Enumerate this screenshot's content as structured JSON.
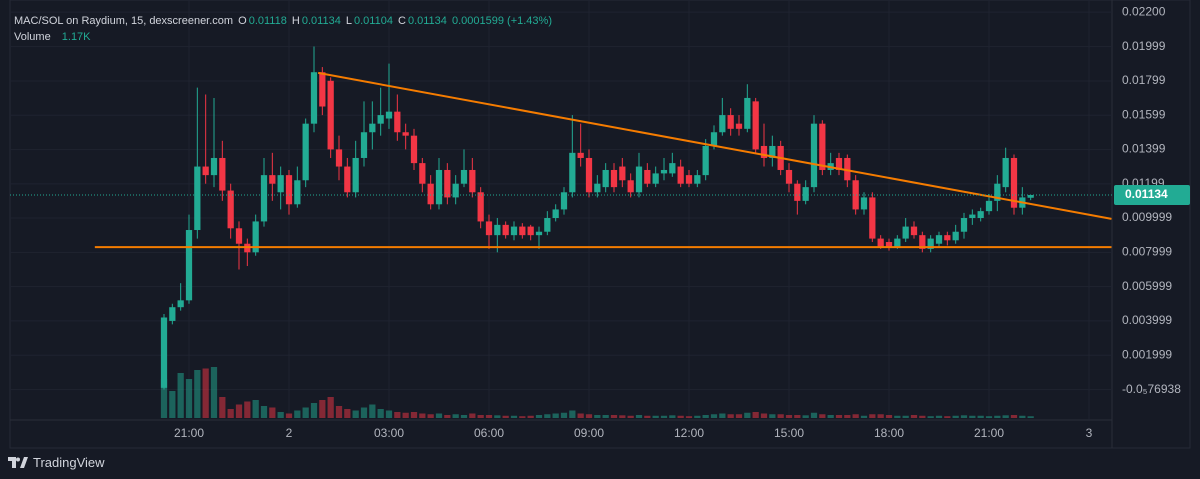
{
  "chart_data": {
    "type": "candlestick",
    "title": "MAC/SOL on Raydium, 15, dexscreener.com",
    "ohlc_labels": [
      "O",
      "H",
      "L",
      "C"
    ],
    "change": "0.0001599 (+1.43%)",
    "up_color": "#22ab94",
    "down_color": "#f23645",
    "open": [
      0.0001,
      0.004,
      0.0048,
      0.0052,
      0.0093,
      0.013,
      0.0125,
      0.0135,
      0.0116,
      0.0094,
      0.0085,
      0.008,
      0.0098,
      0.0125,
      0.0115,
      0.0125,
      0.0108,
      0.0122,
      0.0155,
      0.0185,
      0.018,
      0.014,
      0.013,
      0.0115,
      0.0135,
      0.015,
      0.0155,
      0.0158,
      0.0162,
      0.015,
      0.0148,
      0.0132,
      0.012,
      0.0108,
      0.0128,
      0.0112,
      0.012,
      0.0128,
      0.0115,
      0.0098,
      0.009,
      0.0096,
      0.009,
      0.0095,
      0.0095,
      0.009,
      0.0092,
      0.01,
      0.0105,
      0.0115,
      0.0138,
      0.0135,
      0.0115,
      0.0118,
      0.0128,
      0.013,
      0.0122,
      0.0115,
      0.0128,
      0.012,
      0.0126,
      0.0126,
      0.013,
      0.0125,
      0.012,
      0.0125,
      0.0142,
      0.015,
      0.016,
      0.0155,
      0.0152,
      0.0168,
      0.0142,
      0.0135,
      0.0142,
      0.0128,
      0.012,
      0.011,
      0.0118,
      0.0155,
      0.0128,
      0.0135,
      0.0135,
      0.0122,
      0.0105,
      0.0112,
      0.0088,
      0.0086,
      0.0083,
      0.0088,
      0.0095,
      0.009,
      0.0082,
      0.0085,
      0.009,
      0.0087,
      0.0092,
      0.01,
      0.01,
      0.0104,
      0.011,
      0.0118,
      0.0135,
      0.0106,
      0.01118
    ],
    "high": [
      0.0044,
      0.005,
      0.0062,
      0.0102,
      0.0176,
      0.0172,
      0.017,
      0.0145,
      0.012,
      0.0098,
      0.0088,
      0.0102,
      0.0135,
      0.0138,
      0.013,
      0.0128,
      0.013,
      0.0158,
      0.02,
      0.0188,
      0.0182,
      0.0148,
      0.0135,
      0.0145,
      0.0168,
      0.0168,
      0.0176,
      0.019,
      0.0172,
      0.0155,
      0.0152,
      0.0135,
      0.0125,
      0.0135,
      0.0132,
      0.0125,
      0.014,
      0.0135,
      0.0118,
      0.0102,
      0.01,
      0.0098,
      0.0098,
      0.0097,
      0.0096,
      0.0095,
      0.0104,
      0.0108,
      0.0118,
      0.016,
      0.0155,
      0.014,
      0.0125,
      0.0132,
      0.0132,
      0.0135,
      0.0126,
      0.0138,
      0.0132,
      0.013,
      0.0135,
      0.0138,
      0.0134,
      0.0128,
      0.0128,
      0.0146,
      0.0154,
      0.017,
      0.0164,
      0.016,
      0.0178,
      0.017,
      0.0155,
      0.0148,
      0.0145,
      0.0132,
      0.0122,
      0.0122,
      0.016,
      0.0157,
      0.0138,
      0.0138,
      0.0137,
      0.0125,
      0.0115,
      0.0115,
      0.009,
      0.0088,
      0.009,
      0.01,
      0.0098,
      0.0092,
      0.009,
      0.0092,
      0.0092,
      0.0096,
      0.0103,
      0.0105,
      0.0106,
      0.0114,
      0.0125,
      0.0141,
      0.0137,
      0.0118,
      0.01134
    ],
    "low": [
      0,
      0.0038,
      0.0046,
      0.005,
      0.0088,
      0.012,
      0.0118,
      0.011,
      0.0088,
      0.007,
      0.0072,
      0.0078,
      0.0095,
      0.011,
      0.0105,
      0.0102,
      0.0106,
      0.0118,
      0.015,
      0.016,
      0.0135,
      0.0122,
      0.0112,
      0.0112,
      0.013,
      0.014,
      0.0148,
      0.0152,
      0.0145,
      0.014,
      0.0128,
      0.0115,
      0.0105,
      0.0105,
      0.0108,
      0.0108,
      0.0118,
      0.0112,
      0.0094,
      0.0082,
      0.008,
      0.0088,
      0.0087,
      0.0088,
      0.0087,
      0.0082,
      0.009,
      0.0098,
      0.0102,
      0.0112,
      0.013,
      0.0112,
      0.0112,
      0.0115,
      0.0115,
      0.0118,
      0.0112,
      0.0112,
      0.0118,
      0.0118,
      0.0122,
      0.0124,
      0.0118,
      0.0118,
      0.0118,
      0.0122,
      0.014,
      0.0148,
      0.0148,
      0.0148,
      0.015,
      0.0138,
      0.013,
      0.013,
      0.0125,
      0.0115,
      0.0102,
      0.0108,
      0.0115,
      0.0125,
      0.0125,
      0.0125,
      0.0118,
      0.0102,
      0.0102,
      0.0086,
      0.0082,
      0.0081,
      0.0082,
      0.0086,
      0.0088,
      0.008,
      0.008,
      0.0083,
      0.0084,
      0.0085,
      0.0088,
      0.0096,
      0.0098,
      0.0102,
      0.0104,
      0.0115,
      0.0102,
      0.0102,
      0.01104
    ],
    "close": [
      0.0042,
      0.0048,
      0.0052,
      0.0093,
      0.013,
      0.0125,
      0.0135,
      0.0116,
      0.0094,
      0.0085,
      0.008,
      0.0098,
      0.0125,
      0.012,
      0.0125,
      0.0108,
      0.0122,
      0.0155,
      0.0185,
      0.0165,
      0.014,
      0.013,
      0.0115,
      0.0135,
      0.015,
      0.0155,
      0.016,
      0.0162,
      0.015,
      0.0148,
      0.0132,
      0.012,
      0.0108,
      0.0128,
      0.0112,
      0.012,
      0.0128,
      0.0115,
      0.0098,
      0.009,
      0.0096,
      0.009,
      0.0095,
      0.009,
      0.009,
      0.0092,
      0.01,
      0.0105,
      0.0115,
      0.0138,
      0.0135,
      0.0115,
      0.012,
      0.0128,
      0.0118,
      0.0122,
      0.0115,
      0.013,
      0.012,
      0.0126,
      0.0128,
      0.0132,
      0.012,
      0.012,
      0.0125,
      0.0142,
      0.015,
      0.016,
      0.0152,
      0.0152,
      0.017,
      0.014,
      0.0135,
      0.0142,
      0.0128,
      0.012,
      0.011,
      0.0118,
      0.0155,
      0.0128,
      0.0132,
      0.0128,
      0.0122,
      0.0105,
      0.0112,
      0.0088,
      0.0083,
      0.0083,
      0.0088,
      0.0095,
      0.009,
      0.0082,
      0.0088,
      0.009,
      0.0087,
      0.0092,
      0.01,
      0.0102,
      0.0104,
      0.011,
      0.012,
      0.0135,
      0.0106,
      0.0112,
      0.01134
    ],
    "volume": {
      "name": "Volume",
      "last_label": "1.17K",
      "vlim": [
        0,
        40000
      ],
      "values": [
        26000,
        18000,
        30000,
        26000,
        32000,
        33000,
        34000,
        14000,
        6000,
        9000,
        11000,
        12000,
        8000,
        7000,
        4000,
        3000,
        5000,
        7000,
        10000,
        12000,
        14000,
        8000,
        6000,
        5000,
        7000,
        9000,
        6000,
        5000,
        4000,
        3500,
        4000,
        3000,
        2500,
        3000,
        2000,
        2500,
        2000,
        3000,
        2000,
        2000,
        1800,
        1500,
        1500,
        1200,
        1500,
        2000,
        2500,
        3000,
        3500,
        5000,
        3000,
        2500,
        2000,
        2000,
        2000,
        1800,
        1500,
        2000,
        1500,
        1500,
        1500,
        1800,
        1500,
        1200,
        1500,
        2000,
        2500,
        3000,
        2500,
        2500,
        3500,
        4000,
        3000,
        2500,
        2500,
        2000,
        2000,
        1800,
        3500,
        2500,
        2000,
        2000,
        2000,
        2500,
        1500,
        2500,
        2500,
        2000,
        1500,
        1500,
        2000,
        1500,
        1200,
        1500,
        1200,
        1500,
        1800,
        1500,
        1500,
        1200,
        1500,
        1800,
        2000,
        1500,
        1170
      ]
    },
    "xlim": [
      -18.48,
      113.76
    ],
    "xticks": [
      {
        "value": 3,
        "label": "21:00"
      },
      {
        "value": 15,
        "label": "2"
      },
      {
        "value": 27,
        "label": "03:00"
      },
      {
        "value": 39,
        "label": "06:00"
      },
      {
        "value": 51,
        "label": "09:00"
      },
      {
        "value": 63,
        "label": "12:00"
      },
      {
        "value": 75,
        "label": "15:00"
      },
      {
        "value": 87,
        "label": "18:00"
      },
      {
        "value": 99,
        "label": "21:00"
      },
      {
        "value": 111,
        "label": "3"
      }
    ],
    "ylim": [
      -0.00166,
      0.02271
    ],
    "yticks": [
      {
        "value": 0.022,
        "label": "0.02200"
      },
      0.01999,
      0.01799,
      0.01599,
      0.01399,
      0.01199,
      0.009999,
      0.007999,
      0.005999,
      0.003999,
      0.001999,
      {
        "value": -7.6938e-06,
        "label": "-0.0₅76938"
      }
    ],
    "grid": true,
    "trend_lines": [
      {
        "color": "#f57c00",
        "x": [
          -8.3,
          113.7
        ],
        "y": [
          0.0083,
          0.0083
        ]
      },
      {
        "color": "#f57c00",
        "x": [
          18.5,
          113.7
        ],
        "y": [
          0.01846,
          0.00995
        ]
      }
    ],
    "footer": "TradingView"
  }
}
